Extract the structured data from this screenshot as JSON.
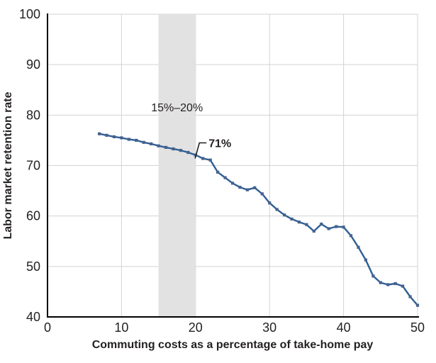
{
  "chart_data": {
    "type": "line",
    "title": "",
    "xlabel": "Commuting costs as a percentage of take-home pay",
    "ylabel": "Labor market retention rate",
    "xlim": [
      0,
      50
    ],
    "ylim": [
      40,
      100
    ],
    "xticks": [
      0,
      10,
      20,
      30,
      40,
      50
    ],
    "yticks": [
      40,
      50,
      60,
      70,
      80,
      90,
      100
    ],
    "grid": true,
    "legend_position": "none",
    "highlight_band": {
      "x_start": 15,
      "x_end": 20,
      "label": "15%–20%"
    },
    "annotation": {
      "label": "71%",
      "x": 21,
      "y": 71.4
    },
    "series": [
      {
        "name": "Labor market retention rate",
        "marker": "square",
        "x": [
          7,
          8,
          9,
          10,
          11,
          12,
          13,
          14,
          15,
          16,
          17,
          18,
          19,
          20,
          21,
          22,
          23,
          24,
          25,
          26,
          27,
          28,
          29,
          30,
          31,
          32,
          33,
          34,
          35,
          36,
          37,
          38,
          39,
          40,
          41,
          42,
          43,
          44,
          45,
          46,
          47,
          48,
          49,
          50
        ],
        "y": [
          76.3,
          76.0,
          75.7,
          75.5,
          75.2,
          75.0,
          74.6,
          74.3,
          73.9,
          73.6,
          73.3,
          73.0,
          72.6,
          72.1,
          71.4,
          71.1,
          68.7,
          67.6,
          66.5,
          65.7,
          65.2,
          65.6,
          64.4,
          62.6,
          61.3,
          60.2,
          59.4,
          58.8,
          58.3,
          57.0,
          58.4,
          57.5,
          57.9,
          57.8,
          56.1,
          53.8,
          51.3,
          48.1,
          46.8,
          46.4,
          46.6,
          46.1,
          44.0,
          42.3
        ]
      }
    ]
  },
  "colors": {
    "line": "#2d5f94",
    "marker": "#46618e",
    "grid": "#d3d3d3",
    "band": "#e2e2e2",
    "axis": "#000000",
    "text": "#231f20",
    "background": "#ffffff"
  }
}
